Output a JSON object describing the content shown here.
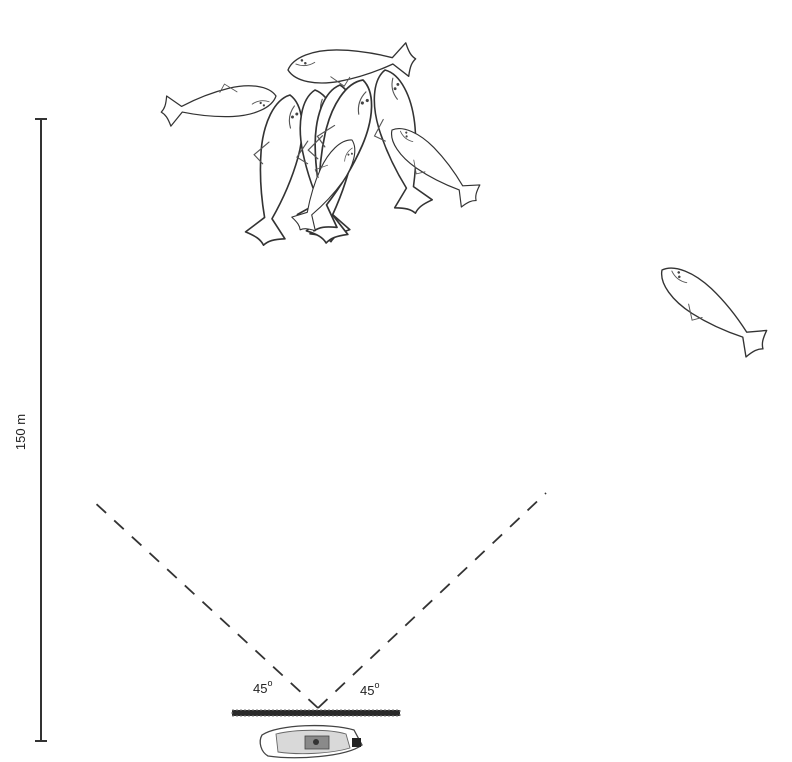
{
  "scale": {
    "label": "150 m"
  },
  "angles": {
    "left": "45",
    "right": "45",
    "unit": "o"
  },
  "icons": {
    "whale_group": "whale-group-icon",
    "lone_whale": "whale-icon",
    "boat": "boat-icon"
  },
  "colors": {
    "ink": "#333333",
    "background": "#ffffff"
  }
}
